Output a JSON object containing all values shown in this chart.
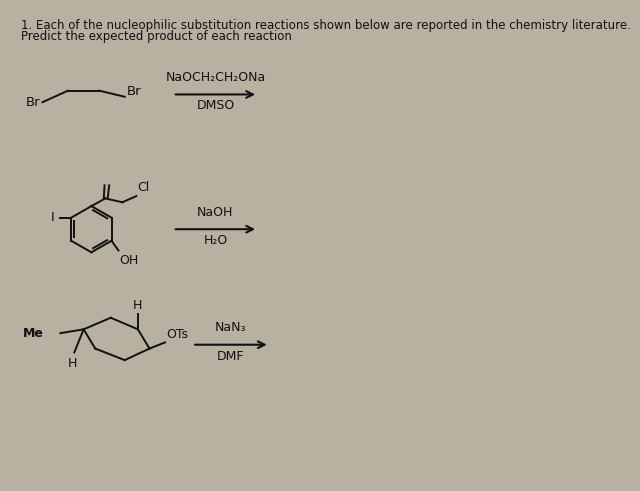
{
  "bg_color": "#b8b0a0",
  "text_color": "#111111",
  "title_line1": "1. Each of the nucleophilic substitution reactions shown below are reported in the chemistry literature.",
  "title_line2": "Predict the expected product of each reaction",
  "reaction1_reagent1": "NaOCH₂CH₂ONa",
  "reaction1_reagent2": "DMSO",
  "reaction2_reagent1": "NaOH",
  "reaction2_reagent2": "H₂O",
  "reaction3_reagent1": "NaN₃",
  "reaction3_reagent2": "DMF",
  "font_size_title": 8.5,
  "font_size_label": 9.5,
  "font_size_small": 9.0,
  "lw": 1.4
}
